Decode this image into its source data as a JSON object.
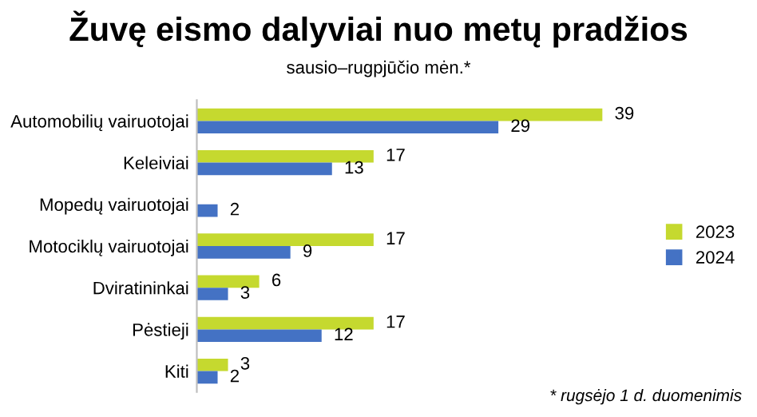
{
  "chart_data": {
    "type": "bar",
    "orientation": "horizontal",
    "title": "Žuvę eismo dalyviai nuo metų pradžios",
    "subtitle": "sausio–rugpjūčio mėn.*",
    "categories": [
      "Automobilių vairuotojai",
      "Keleiviai",
      "Mopedų vairuotojai",
      "Motociklų vairuotojai",
      "Dviratininkai",
      "Pėstieji",
      "Kiti"
    ],
    "series": [
      {
        "name": "2023",
        "color": "#c5d92f",
        "values": [
          39,
          17,
          null,
          17,
          6,
          17,
          3
        ]
      },
      {
        "name": "2024",
        "color": "#4472c4",
        "values": [
          29,
          13,
          2,
          9,
          3,
          12,
          2
        ]
      }
    ],
    "data_labels": true,
    "legend": "right",
    "grid": false,
    "annotations": [
      "* rugsėjo 1 d. duomenimis"
    ]
  }
}
